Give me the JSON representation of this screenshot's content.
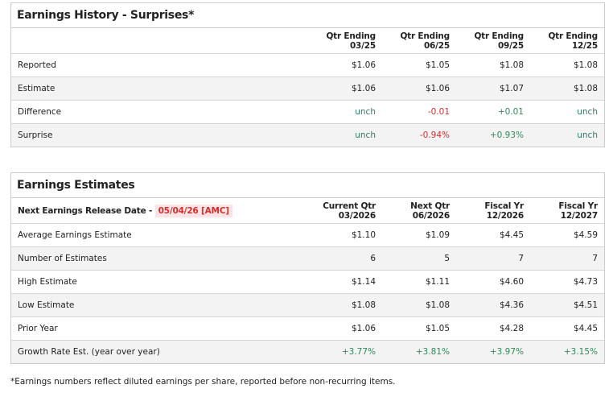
{
  "history": {
    "title": "Earnings History - Surprises*",
    "columns": [
      [
        "Qtr Ending",
        "03/25"
      ],
      [
        "Qtr Ending",
        "06/25"
      ],
      [
        "Qtr Ending",
        "09/25"
      ],
      [
        "Qtr Ending",
        "12/25"
      ]
    ],
    "rows": [
      {
        "label": "Reported",
        "values": [
          "$1.06",
          "$1.05",
          "$1.08",
          "$1.08"
        ]
      },
      {
        "label": "Estimate",
        "values": [
          "$1.06",
          "$1.06",
          "$1.07",
          "$1.08"
        ]
      },
      {
        "label": "Difference",
        "values": [
          "unch",
          "-0.01",
          "+0.01",
          "unch"
        ]
      },
      {
        "label": "Surprise",
        "values": [
          "unch",
          "-0.94%",
          "+0.93%",
          "unch"
        ]
      }
    ]
  },
  "estimates": {
    "title": "Earnings Estimates",
    "release_label": "Next Earnings Release Date - ",
    "release_date": "05/04/26 [AMC]",
    "columns": [
      [
        "Current Qtr",
        "03/2026"
      ],
      [
        "Next Qtr",
        "06/2026"
      ],
      [
        "Fiscal Yr",
        "12/2026"
      ],
      [
        "Fiscal Yr",
        "12/2027"
      ]
    ],
    "rows": [
      {
        "label": "Average Earnings Estimate",
        "values": [
          "$1.10",
          "$1.09",
          "$4.45",
          "$4.59"
        ]
      },
      {
        "label": "Number of Estimates",
        "values": [
          "6",
          "5",
          "7",
          "7"
        ]
      },
      {
        "label": "High Estimate",
        "values": [
          "$1.14",
          "$1.11",
          "$4.60",
          "$4.73"
        ]
      },
      {
        "label": "Low Estimate",
        "values": [
          "$1.08",
          "$1.08",
          "$4.36",
          "$4.51"
        ]
      },
      {
        "label": "Prior Year",
        "values": [
          "$1.06",
          "$1.05",
          "$4.28",
          "$4.45"
        ]
      },
      {
        "label": "Growth Rate Est. (year over year)",
        "values": [
          "+3.77%",
          "+3.81%",
          "+3.97%",
          "+3.15%"
        ]
      }
    ]
  },
  "footnote": "*Earnings numbers reflect diluted earnings per share, reported before non-recurring items.",
  "colors": {
    "positive": "#2f8a5c",
    "negative": "#d32f2f",
    "unchanged": "#2f7a6a"
  }
}
